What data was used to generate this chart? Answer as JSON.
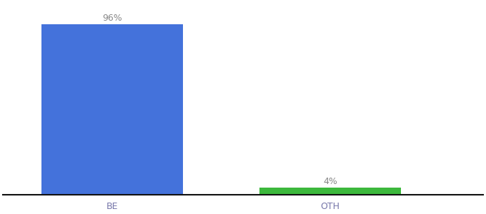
{
  "categories": [
    "BE",
    "OTH"
  ],
  "values": [
    96,
    4
  ],
  "bar_colors": [
    "#4472db",
    "#3cb83c"
  ],
  "label_texts": [
    "96%",
    "4%"
  ],
  "background_color": "#ffffff",
  "text_color": "#888888",
  "tick_color": "#7777aa",
  "ylim": [
    0,
    108
  ],
  "bar_width": 0.65,
  "label_fontsize": 9,
  "tick_fontsize": 9,
  "bottom_spine_color": "#111111",
  "x_positions": [
    0.5,
    1.5
  ],
  "xlim": [
    0.0,
    2.2
  ]
}
